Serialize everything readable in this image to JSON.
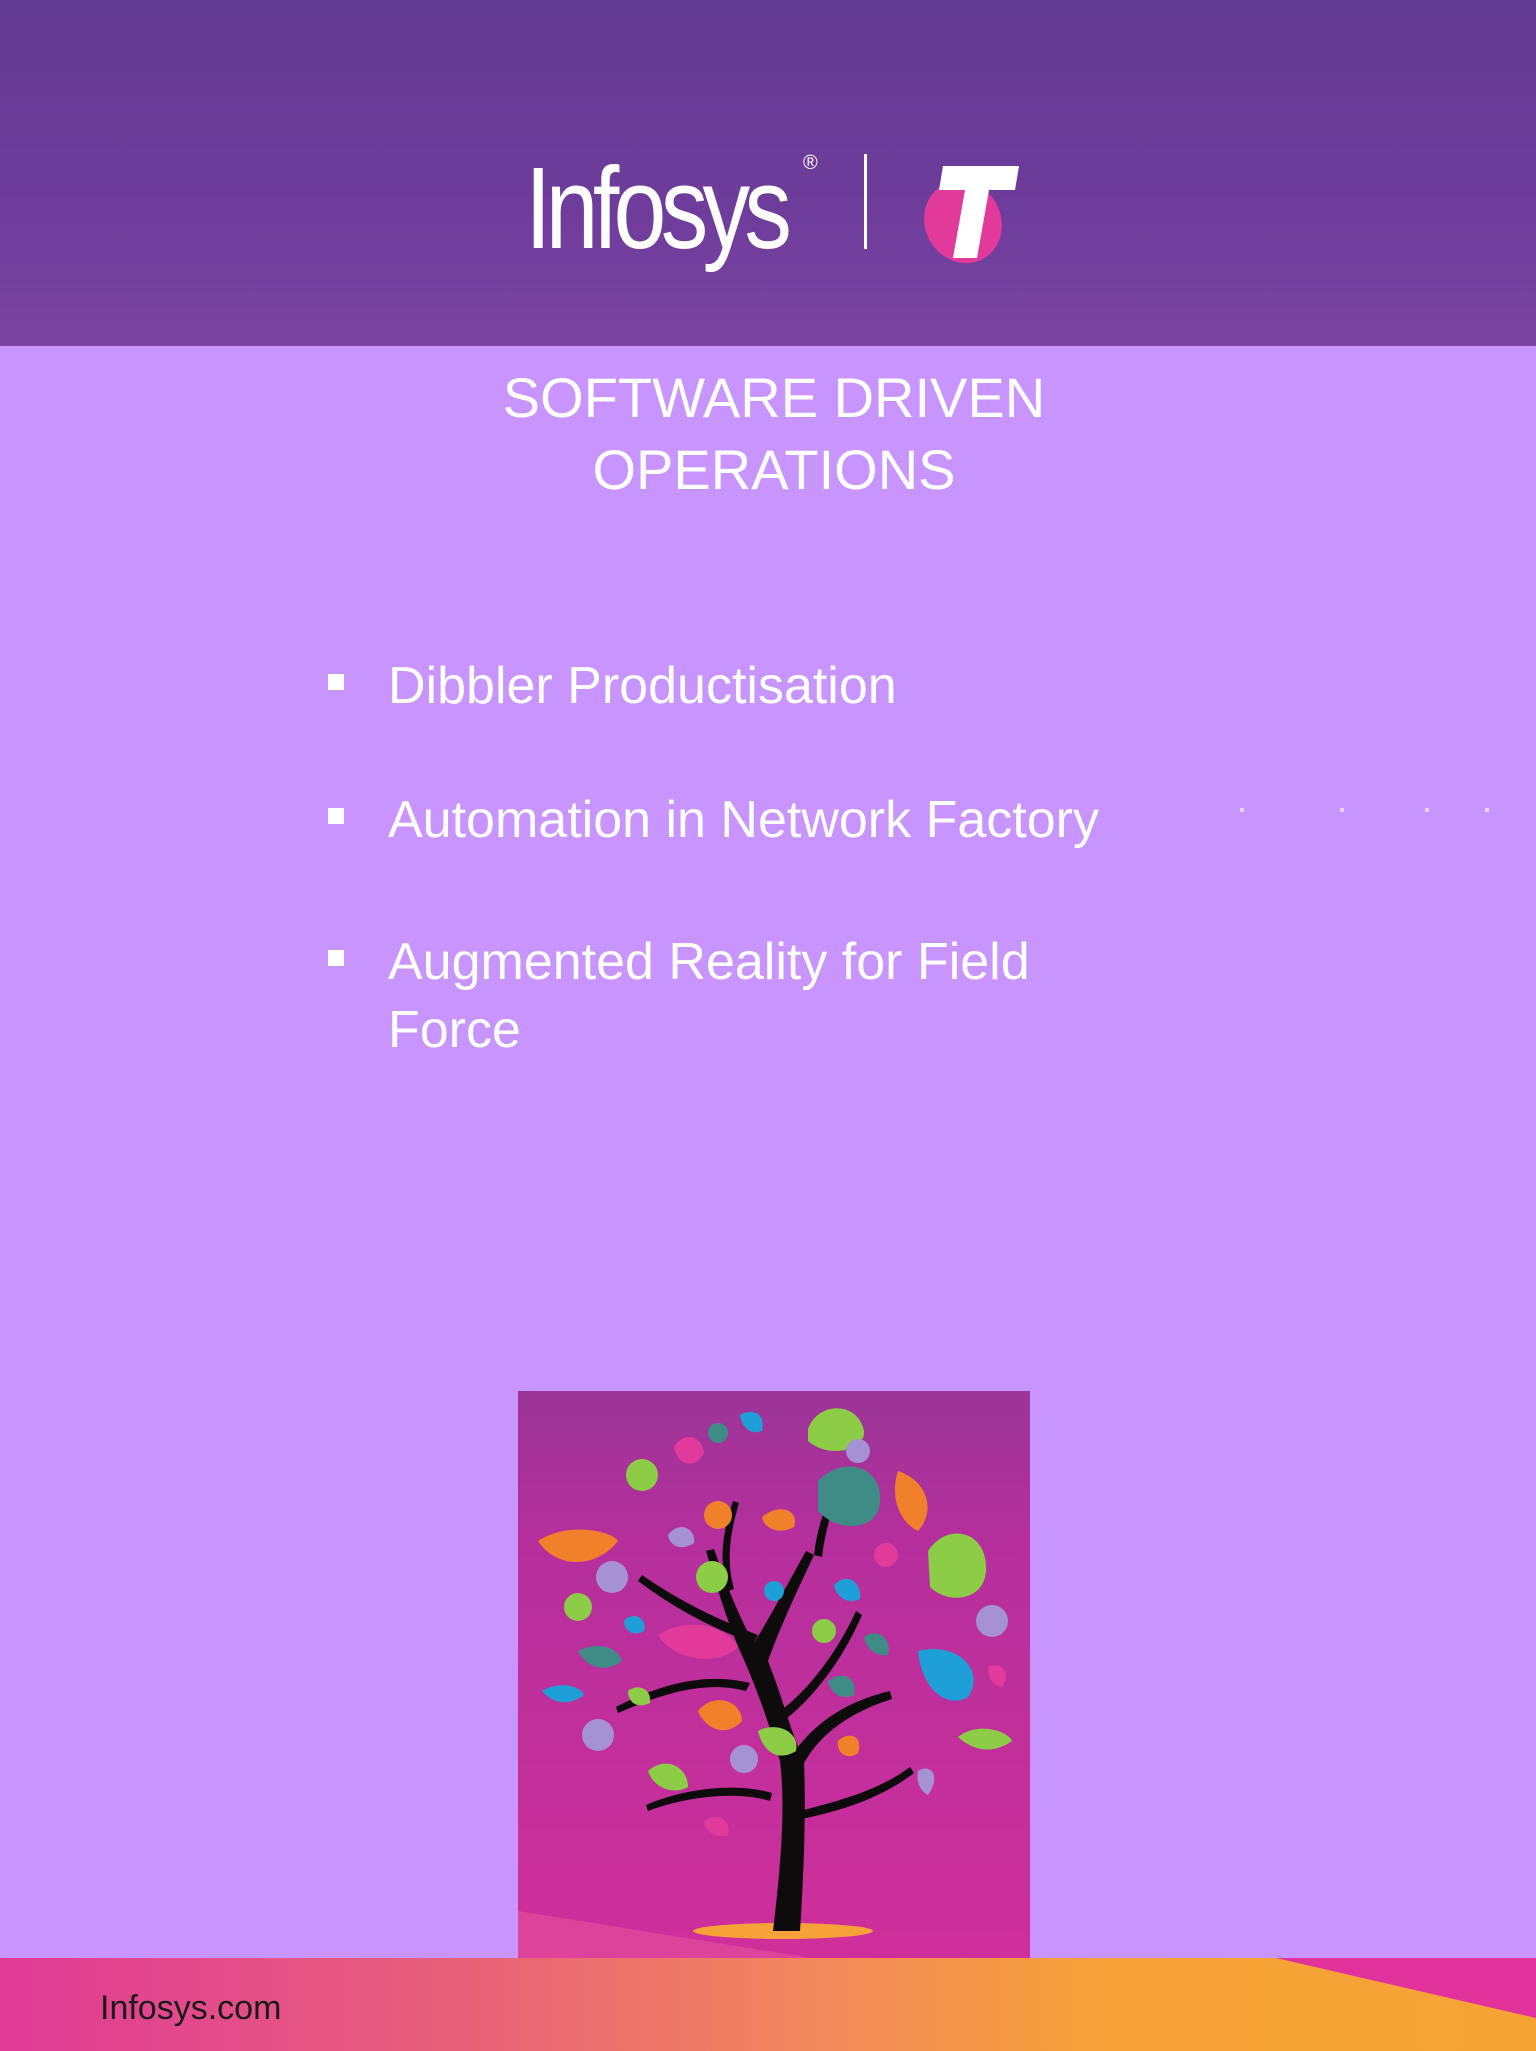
{
  "header": {
    "brand_name": "Infosys",
    "brand_mark": "®",
    "partner_logo_letter": "T"
  },
  "title": {
    "line1": "SOFTWARE DRIVEN",
    "line2": "OPERATIONS"
  },
  "bullets": [
    {
      "text": "Dibbler Productisation"
    },
    {
      "text": "Automation in Network Factory"
    },
    {
      "line1": "Augmented Reality for Field",
      "line2": "Force"
    }
  ],
  "illustration": {
    "icon": "tree-icon"
  },
  "footer": {
    "website": "Infosys.com"
  },
  "colors": {
    "page_background": "#c894fd",
    "header_background": "#6a3d9a",
    "telstra_magenta": "#e23a9b",
    "footer_start": "#e03a96",
    "footer_end": "#f5a434",
    "tree_panel": "#c92d9d"
  }
}
